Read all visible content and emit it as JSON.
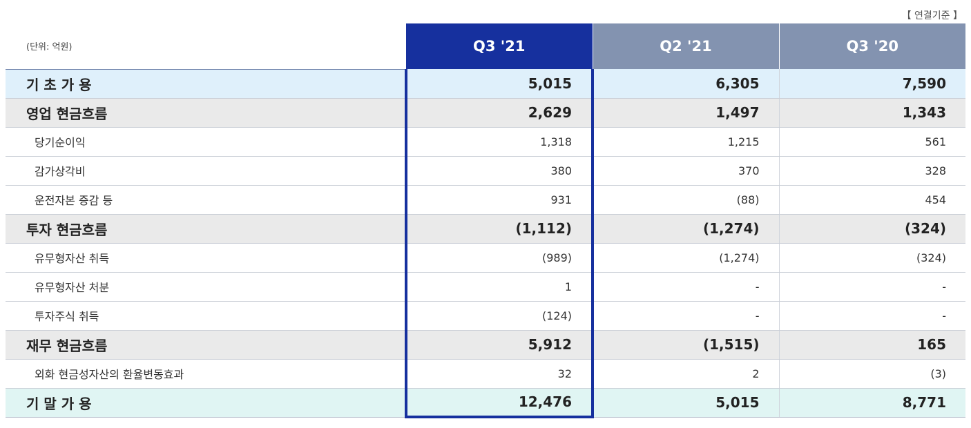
{
  "basis": "【 연결기준 】",
  "unit": "(단위: 억원)",
  "columns": [
    "Q3 '21",
    "Q2 '21",
    "Q3 '20"
  ],
  "rows": [
    {
      "label": "기 초 가 용",
      "type": "major",
      "bg": "blue",
      "values": [
        "5,015",
        "6,305",
        "7,590"
      ]
    },
    {
      "label": "영업 현금흐름",
      "type": "major",
      "bg": "grey",
      "values": [
        "2,629",
        "1,497",
        "1,343"
      ]
    },
    {
      "label": "당기순이익",
      "type": "sub",
      "values": [
        "1,318",
        "1,215",
        "561"
      ]
    },
    {
      "label": "감가상각비",
      "type": "sub",
      "values": [
        "380",
        "370",
        "328"
      ]
    },
    {
      "label": "운전자본 증감 등",
      "type": "sub",
      "values": [
        "931",
        "(88)",
        "454"
      ]
    },
    {
      "label": "투자 현금흐름",
      "type": "major",
      "bg": "grey",
      "values": [
        "(1,112)",
        "(1,274)",
        "(324)"
      ]
    },
    {
      "label": "유무형자산 취득",
      "type": "sub",
      "values": [
        "(989)",
        "(1,274)",
        "(324)"
      ]
    },
    {
      "label": "유무형자산 처분",
      "type": "sub",
      "values": [
        "1",
        "-",
        "-"
      ]
    },
    {
      "label": "투자주식 취득",
      "type": "sub",
      "values": [
        "(124)",
        "-",
        "-"
      ]
    },
    {
      "label": "재무 현금흐름",
      "type": "major",
      "bg": "grey",
      "values": [
        "5,912",
        "(1,515)",
        "165"
      ]
    },
    {
      "label": "외화 현금성자산의 환율변동효과",
      "type": "sub",
      "values": [
        "32",
        "2",
        "(3)"
      ]
    },
    {
      "label": "기 말 가 용",
      "type": "major",
      "bg": "mint",
      "values": [
        "12,476",
        "5,015",
        "8,771"
      ]
    }
  ],
  "colors": {
    "highlight": "#16309e",
    "header": "#8393b0",
    "blue_row": "#dff0fb",
    "grey_row": "#eaeaea",
    "mint_row": "#e0f5f3"
  }
}
